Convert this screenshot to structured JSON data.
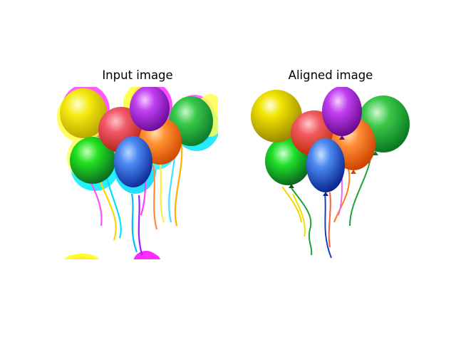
{
  "figure": {
    "left_panel": {
      "title": "Input image"
    },
    "right_panel": {
      "title": "Aligned image"
    }
  },
  "scene": {
    "subject": "bunch of party balloons",
    "balloon_colors": [
      "#f2e100",
      "#1fa23a",
      "#e23b1a",
      "#1d4fd0",
      "#ff7a1a",
      "#a41fd2",
      "#32c64a"
    ],
    "input_channel_shift_colors": [
      "#ff00ff",
      "#00ffff",
      "#ffff00"
    ]
  }
}
